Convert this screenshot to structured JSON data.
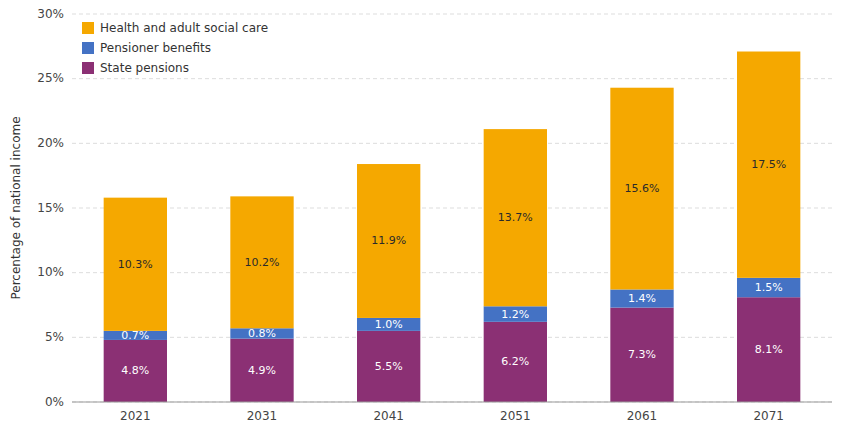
{
  "chart_data": {
    "type": "bar",
    "stacked": true,
    "data_labels": true,
    "grid": true,
    "legend": "upper left",
    "y_label": "Percentage of national income",
    "categories": [
      "2021",
      "2031",
      "2041",
      "2051",
      "2061",
      "2071"
    ],
    "series": [
      {
        "name": "State pensions",
        "color": "#8B3074",
        "values": [
          4.8,
          4.9,
          5.5,
          6.2,
          7.3,
          8.1
        ],
        "value_labels": [
          "4.8%",
          "4.9%",
          "5.5%",
          "6.2%",
          "7.3%",
          "8.1%"
        ]
      },
      {
        "name": "Pensioner benefits",
        "color": "#4472C4",
        "values": [
          0.7,
          0.8,
          1.0,
          1.2,
          1.4,
          1.5
        ],
        "value_labels": [
          "0.7%",
          "0.8%",
          "1.0%",
          "1.2%",
          "1.4%",
          "1.5%"
        ]
      },
      {
        "name": "Health and adult social care",
        "color": "#F5A800",
        "values": [
          10.3,
          10.2,
          11.9,
          13.7,
          15.6,
          17.5
        ],
        "value_labels": [
          "10.3%",
          "10.2%",
          "11.9%",
          "13.7%",
          "15.6%",
          "17.5%"
        ]
      }
    ],
    "ylim": [
      0,
      30
    ],
    "yticks": [
      {
        "value": 0,
        "label": "0%"
      },
      {
        "value": 5,
        "label": "5%"
      },
      {
        "value": 10,
        "label": "10%"
      },
      {
        "value": 15,
        "label": "15%"
      },
      {
        "value": 20,
        "label": "20%"
      },
      {
        "value": 25,
        "label": "25%"
      },
      {
        "value": 30,
        "label": "30%"
      }
    ]
  }
}
